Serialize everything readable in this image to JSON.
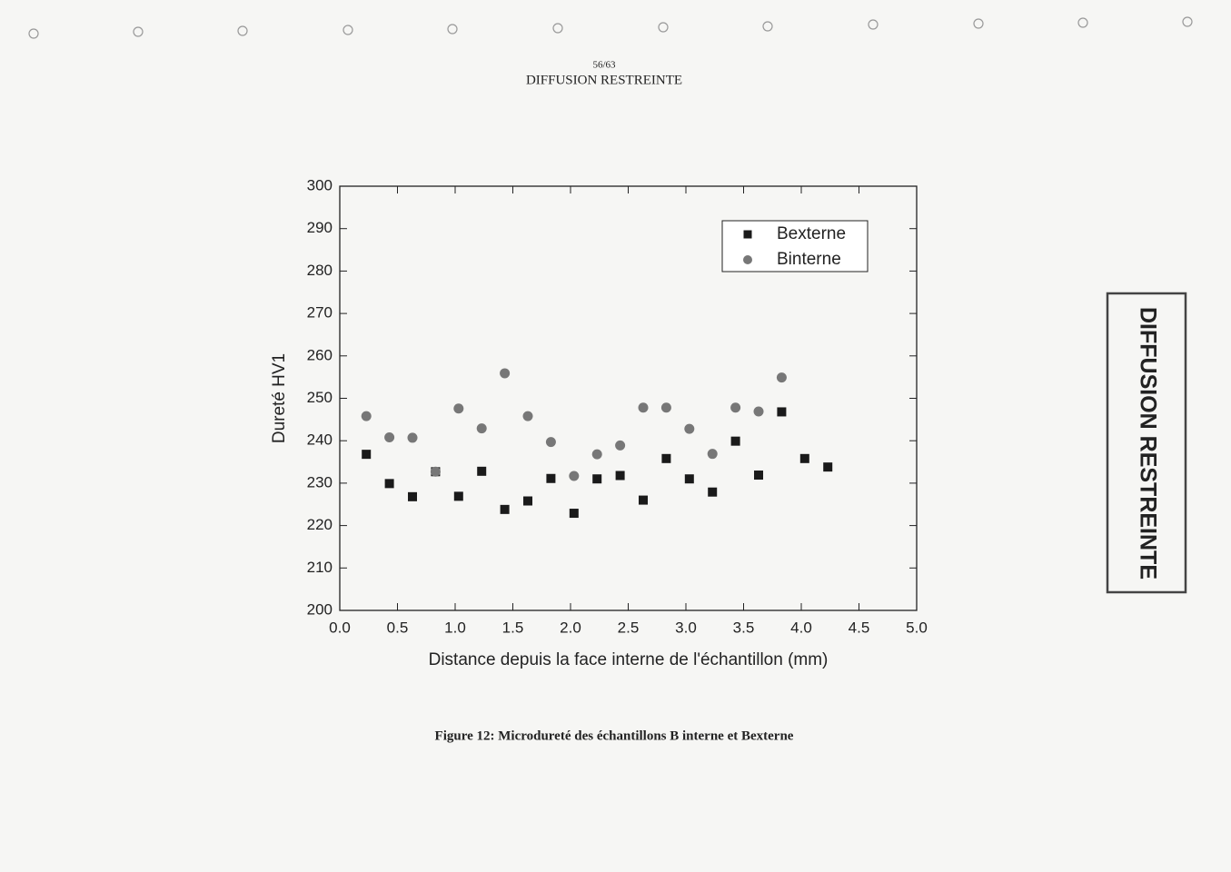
{
  "header": {
    "page": "56/63",
    "classification": "DIFFUSION RESTREINTE"
  },
  "stamp": "DIFFUSION RESTREINTE",
  "caption": "Figure 12: Microdureté des échantillons B interne et Bexterne",
  "chart_data": {
    "type": "scatter",
    "x_label": "Distance depuis la face interne de l'échantillon (mm)",
    "y_label": "Dureté HV1",
    "xlim": [
      0,
      5
    ],
    "ylim": [
      200,
      300
    ],
    "xticks": [
      {
        "value": 0,
        "label": "0.0"
      },
      {
        "value": 0.5,
        "label": "0.5"
      },
      {
        "value": 1,
        "label": "1.0"
      },
      {
        "value": 1.5,
        "label": "1.5"
      },
      {
        "value": 2,
        "label": "2.0"
      },
      {
        "value": 2.5,
        "label": "2.5"
      },
      {
        "value": 3,
        "label": "3.0"
      },
      {
        "value": 3.5,
        "label": "3.5"
      },
      {
        "value": 4,
        "label": "4.0"
      },
      {
        "value": 4.5,
        "label": "4.5"
      },
      {
        "value": 5,
        "label": "5.0"
      }
    ],
    "yticks": [
      200,
      210,
      220,
      230,
      240,
      250,
      260,
      270,
      280,
      290,
      300
    ],
    "legend": "upper right",
    "series": [
      {
        "name": "Bexterne",
        "marker": "square",
        "color": "#1a1a1a",
        "x": [
          0.23,
          0.43,
          0.63,
          0.83,
          1.03,
          1.23,
          1.43,
          1.63,
          1.83,
          2.03,
          2.23,
          2.43,
          2.63,
          2.83,
          3.03,
          3.23,
          3.43,
          3.63,
          3.83,
          4.03,
          4.23
        ],
        "values": [
          236.8,
          229.9,
          226.8,
          232.7,
          226.9,
          232.8,
          223.8,
          225.8,
          231.1,
          222.9,
          231.0,
          231.8,
          226.0,
          235.8,
          231.0,
          227.9,
          239.9,
          231.9,
          246.8,
          235.8,
          233.8
        ]
      },
      {
        "name": "Binterne",
        "marker": "circle",
        "color": "#777777",
        "x": [
          0.23,
          0.43,
          0.63,
          0.83,
          1.03,
          1.23,
          1.43,
          1.63,
          1.83,
          2.03,
          2.23,
          2.43,
          2.63,
          2.83,
          3.03,
          3.23,
          3.43,
          3.63,
          3.83
        ],
        "values": [
          245.8,
          240.8,
          240.7,
          232.7,
          247.6,
          242.9,
          255.9,
          245.8,
          239.7,
          231.7,
          236.8,
          238.9,
          247.8,
          247.8,
          242.8,
          236.9,
          247.8,
          246.9,
          254.9
        ]
      }
    ]
  }
}
